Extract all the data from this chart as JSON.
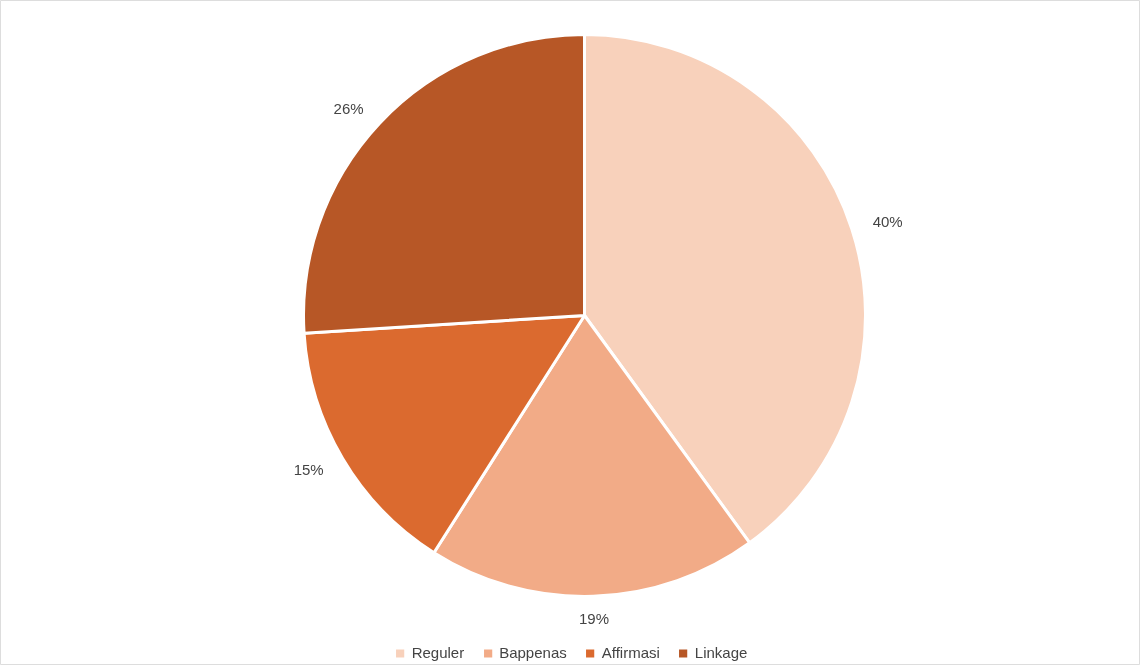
{
  "chart_data": {
    "type": "pie",
    "categories": [
      "Reguler",
      "Bappenas",
      "Affirmasi",
      "Linkage"
    ],
    "values": [
      40,
      19,
      15,
      26
    ],
    "colors": [
      "#f8d1bb",
      "#f2ab87",
      "#db6a2f",
      "#b75726"
    ],
    "value_labels": [
      "40%",
      "19%",
      "15%",
      "26%"
    ],
    "legend": "bottom"
  }
}
